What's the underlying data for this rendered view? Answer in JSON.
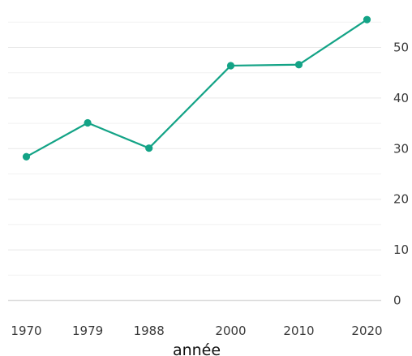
{
  "chart_data": {
    "type": "line",
    "title": "",
    "xlabel": "année",
    "ylabel": "",
    "x": [
      1970,
      1979,
      1988,
      2000,
      2010,
      2020
    ],
    "series": [
      {
        "values": [
          28.4,
          35.1,
          30.1,
          46.4,
          46.6,
          55.5
        ]
      }
    ],
    "ylim": [
      0,
      55
    ],
    "yticks": [
      0,
      10,
      20,
      30,
      40,
      50
    ],
    "xticks": [
      1970,
      1979,
      1988,
      2000,
      2010,
      2020
    ],
    "grid": true,
    "y_axis_side": "right",
    "legend": "none",
    "colors": {
      "series": "#13a386",
      "grid": "#e8e8e8"
    }
  }
}
